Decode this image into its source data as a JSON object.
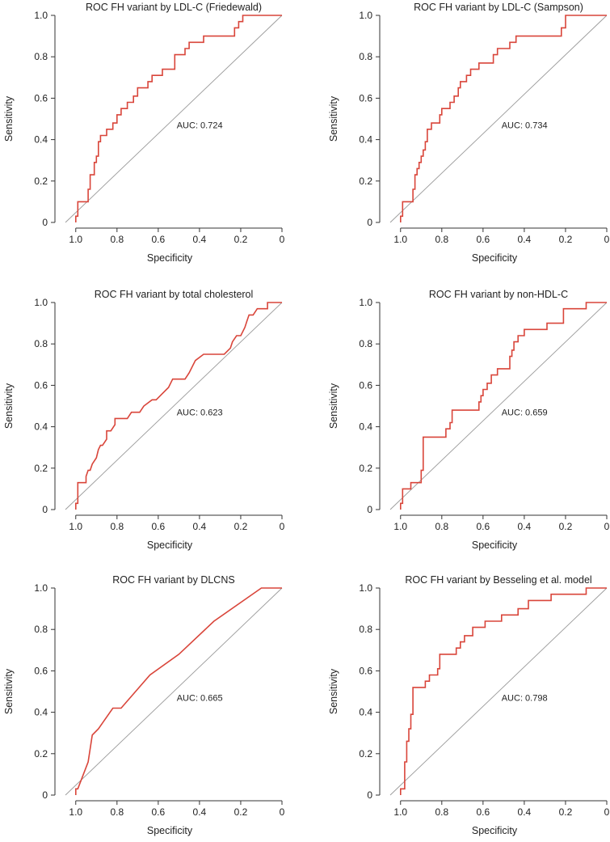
{
  "roc_color": "#d9453a",
  "diagonal_color": "#9a9a9a",
  "chart_data": [
    {
      "type": "line",
      "title": "ROC FH variant by LDL-C (Friedewald)",
      "xlabel": "Specificity",
      "ylabel": "Sensitivity",
      "xlim": [
        1.05,
        0
      ],
      "ylim": [
        0,
        1
      ],
      "x_ticks": [
        "1.0",
        "0.8",
        "0.6",
        "0.4",
        "0.2",
        "0"
      ],
      "y_ticks": [
        "0",
        "0.2",
        "0.4",
        "0.6",
        "0.8",
        "1.0"
      ],
      "auc_label": "AUC: 0.724",
      "series": [
        {
          "name": "ROC",
          "specificity": [
            1.0,
            1.0,
            0.99,
            0.99,
            0.94,
            0.94,
            0.93,
            0.93,
            0.91,
            0.91,
            0.9,
            0.9,
            0.89,
            0.89,
            0.88,
            0.88,
            0.85,
            0.85,
            0.82,
            0.82,
            0.8,
            0.8,
            0.78,
            0.78,
            0.75,
            0.75,
            0.72,
            0.72,
            0.7,
            0.7,
            0.65,
            0.65,
            0.63,
            0.63,
            0.58,
            0.58,
            0.52,
            0.52,
            0.47,
            0.47,
            0.45,
            0.45,
            0.38,
            0.38,
            0.23,
            0.23,
            0.21,
            0.21,
            0.19,
            0.19,
            0.0
          ],
          "sensitivity": [
            0.0,
            0.03,
            0.03,
            0.1,
            0.1,
            0.16,
            0.16,
            0.23,
            0.23,
            0.29,
            0.29,
            0.32,
            0.32,
            0.39,
            0.39,
            0.42,
            0.42,
            0.45,
            0.45,
            0.48,
            0.48,
            0.52,
            0.52,
            0.55,
            0.55,
            0.58,
            0.58,
            0.61,
            0.61,
            0.65,
            0.65,
            0.68,
            0.68,
            0.71,
            0.71,
            0.74,
            0.74,
            0.81,
            0.81,
            0.84,
            0.84,
            0.87,
            0.87,
            0.9,
            0.9,
            0.94,
            0.94,
            0.97,
            0.97,
            1.0,
            1.0
          ]
        }
      ]
    },
    {
      "type": "line",
      "title": "ROC FH variant by LDL-C (Sampson)",
      "xlabel": "Specificity",
      "ylabel": "Sensitivity",
      "xlim": [
        1.05,
        0
      ],
      "ylim": [
        0,
        1
      ],
      "x_ticks": [
        "1.0",
        "0.8",
        "0.6",
        "0.4",
        "0.2",
        "0"
      ],
      "y_ticks": [
        "0",
        "0.2",
        "0.4",
        "0.6",
        "0.8",
        "1.0"
      ],
      "auc_label": "AUC: 0.734",
      "series": [
        {
          "name": "ROC",
          "specificity": [
            1.0,
            1.0,
            0.99,
            0.99,
            0.94,
            0.94,
            0.93,
            0.93,
            0.92,
            0.92,
            0.91,
            0.91,
            0.9,
            0.9,
            0.89,
            0.89,
            0.88,
            0.88,
            0.87,
            0.87,
            0.85,
            0.85,
            0.81,
            0.81,
            0.8,
            0.8,
            0.76,
            0.76,
            0.74,
            0.74,
            0.72,
            0.72,
            0.71,
            0.71,
            0.68,
            0.68,
            0.66,
            0.66,
            0.62,
            0.62,
            0.55,
            0.55,
            0.53,
            0.53,
            0.47,
            0.47,
            0.44,
            0.44,
            0.4,
            0.4,
            0.22,
            0.22,
            0.2,
            0.2,
            0.0
          ],
          "sensitivity": [
            0.0,
            0.03,
            0.03,
            0.1,
            0.1,
            0.16,
            0.16,
            0.23,
            0.23,
            0.26,
            0.26,
            0.29,
            0.29,
            0.32,
            0.32,
            0.35,
            0.35,
            0.39,
            0.39,
            0.45,
            0.45,
            0.48,
            0.48,
            0.52,
            0.52,
            0.55,
            0.55,
            0.58,
            0.58,
            0.61,
            0.61,
            0.65,
            0.65,
            0.68,
            0.68,
            0.71,
            0.71,
            0.74,
            0.74,
            0.77,
            0.77,
            0.81,
            0.81,
            0.84,
            0.84,
            0.87,
            0.87,
            0.9,
            0.9,
            0.9,
            0.9,
            0.94,
            0.94,
            1.0,
            1.0
          ]
        }
      ]
    },
    {
      "type": "line",
      "title": "ROC FH variant by total cholesterol",
      "xlabel": "Specificity",
      "ylabel": "Sensitivity",
      "xlim": [
        1.05,
        0
      ],
      "ylim": [
        0,
        1
      ],
      "x_ticks": [
        "1.0",
        "0.8",
        "0.6",
        "0.4",
        "0.2",
        "0"
      ],
      "y_ticks": [
        "0",
        "0.2",
        "0.4",
        "0.6",
        "0.8",
        "1.0"
      ],
      "auc_label": "AUC: 0.623",
      "series": [
        {
          "name": "ROC",
          "specificity": [
            1.0,
            1.0,
            0.99,
            0.99,
            0.95,
            0.95,
            0.94,
            0.93,
            0.92,
            0.92,
            0.9,
            0.89,
            0.88,
            0.87,
            0.85,
            0.85,
            0.83,
            0.81,
            0.81,
            0.78,
            0.76,
            0.75,
            0.73,
            0.71,
            0.69,
            0.67,
            0.63,
            0.61,
            0.58,
            0.55,
            0.53,
            0.5,
            0.47,
            0.45,
            0.42,
            0.38,
            0.3,
            0.28,
            0.25,
            0.24,
            0.22,
            0.2,
            0.18,
            0.17,
            0.16,
            0.14,
            0.12,
            0.1,
            0.07,
            0.07,
            0.0
          ],
          "sensitivity": [
            0.0,
            0.03,
            0.03,
            0.13,
            0.13,
            0.16,
            0.19,
            0.19,
            0.22,
            0.22,
            0.25,
            0.29,
            0.31,
            0.31,
            0.34,
            0.38,
            0.38,
            0.41,
            0.44,
            0.44,
            0.44,
            0.44,
            0.47,
            0.47,
            0.47,
            0.5,
            0.53,
            0.53,
            0.56,
            0.59,
            0.63,
            0.63,
            0.63,
            0.66,
            0.72,
            0.75,
            0.75,
            0.75,
            0.78,
            0.81,
            0.84,
            0.84,
            0.88,
            0.91,
            0.94,
            0.94,
            0.97,
            0.97,
            0.97,
            1.0,
            1.0
          ]
        }
      ]
    },
    {
      "type": "line",
      "title": "ROC FH variant by non-HDL-C",
      "xlabel": "Specificity",
      "ylabel": "Sensitivity",
      "xlim": [
        1.05,
        0
      ],
      "ylim": [
        0,
        1
      ],
      "x_ticks": [
        "1.0",
        "0.8",
        "0.6",
        "0.4",
        "0.2",
        "0"
      ],
      "y_ticks": [
        "0",
        "0.2",
        "0.4",
        "0.6",
        "0.8",
        "1.0"
      ],
      "auc_label": "AUC: 0.659",
      "series": [
        {
          "name": "ROC",
          "specificity": [
            1.0,
            1.0,
            0.99,
            0.99,
            0.95,
            0.95,
            0.9,
            0.9,
            0.89,
            0.89,
            0.78,
            0.78,
            0.76,
            0.76,
            0.75,
            0.75,
            0.62,
            0.62,
            0.61,
            0.61,
            0.6,
            0.6,
            0.58,
            0.58,
            0.56,
            0.56,
            0.53,
            0.53,
            0.47,
            0.47,
            0.46,
            0.46,
            0.45,
            0.45,
            0.43,
            0.43,
            0.4,
            0.4,
            0.29,
            0.29,
            0.21,
            0.21,
            0.1,
            0.1,
            0.0
          ],
          "sensitivity": [
            0.0,
            0.03,
            0.03,
            0.1,
            0.1,
            0.13,
            0.13,
            0.19,
            0.19,
            0.35,
            0.35,
            0.39,
            0.39,
            0.42,
            0.42,
            0.48,
            0.48,
            0.52,
            0.52,
            0.55,
            0.55,
            0.58,
            0.58,
            0.61,
            0.61,
            0.65,
            0.65,
            0.68,
            0.68,
            0.74,
            0.74,
            0.77,
            0.77,
            0.81,
            0.81,
            0.84,
            0.84,
            0.87,
            0.87,
            0.9,
            0.9,
            0.97,
            0.97,
            1.0,
            1.0
          ]
        }
      ]
    },
    {
      "type": "line",
      "title": "ROC FH variant by DLCNS",
      "xlabel": "Specificity",
      "ylabel": "Sensitivity",
      "xlim": [
        1.05,
        0
      ],
      "ylim": [
        0,
        1
      ],
      "x_ticks": [
        "1.0",
        "0.8",
        "0.6",
        "0.4",
        "0.2",
        "0"
      ],
      "y_ticks": [
        "0",
        "0.2",
        "0.4",
        "0.6",
        "0.8",
        "1.0"
      ],
      "auc_label": "AUC: 0.665",
      "series": [
        {
          "name": "ROC",
          "specificity": [
            1.0,
            1.0,
            0.99,
            0.94,
            0.92,
            0.89,
            0.82,
            0.78,
            0.64,
            0.5,
            0.33,
            0.1,
            0.0
          ],
          "sensitivity": [
            0.0,
            0.03,
            0.03,
            0.16,
            0.29,
            0.32,
            0.42,
            0.42,
            0.58,
            0.68,
            0.84,
            1.0,
            1.0
          ]
        }
      ]
    },
    {
      "type": "line",
      "title": "ROC FH variant by Besseling et al. model",
      "xlabel": "Specificity",
      "ylabel": "Sensitivity",
      "xlim": [
        1.05,
        0
      ],
      "ylim": [
        0,
        1
      ],
      "x_ticks": [
        "1.0",
        "0.8",
        "0.6",
        "0.4",
        "0.2",
        "0"
      ],
      "y_ticks": [
        "0",
        "0.2",
        "0.4",
        "0.6",
        "0.8",
        "1.0"
      ],
      "auc_label": "AUC: 0.798",
      "series": [
        {
          "name": "ROC",
          "specificity": [
            1.0,
            1.0,
            0.98,
            0.98,
            0.97,
            0.97,
            0.96,
            0.96,
            0.95,
            0.95,
            0.94,
            0.94,
            0.88,
            0.88,
            0.86,
            0.86,
            0.82,
            0.82,
            0.81,
            0.81,
            0.73,
            0.73,
            0.71,
            0.71,
            0.69,
            0.69,
            0.65,
            0.65,
            0.59,
            0.59,
            0.55,
            0.55,
            0.51,
            0.51,
            0.43,
            0.43,
            0.38,
            0.38,
            0.27,
            0.27,
            0.1,
            0.1,
            0.0
          ],
          "sensitivity": [
            0.0,
            0.03,
            0.03,
            0.16,
            0.16,
            0.26,
            0.26,
            0.32,
            0.32,
            0.39,
            0.39,
            0.52,
            0.52,
            0.55,
            0.55,
            0.58,
            0.58,
            0.61,
            0.61,
            0.68,
            0.68,
            0.71,
            0.71,
            0.74,
            0.74,
            0.77,
            0.77,
            0.81,
            0.81,
            0.84,
            0.84,
            0.84,
            0.84,
            0.87,
            0.87,
            0.9,
            0.9,
            0.94,
            0.94,
            0.97,
            0.97,
            1.0,
            1.0
          ]
        }
      ]
    }
  ]
}
